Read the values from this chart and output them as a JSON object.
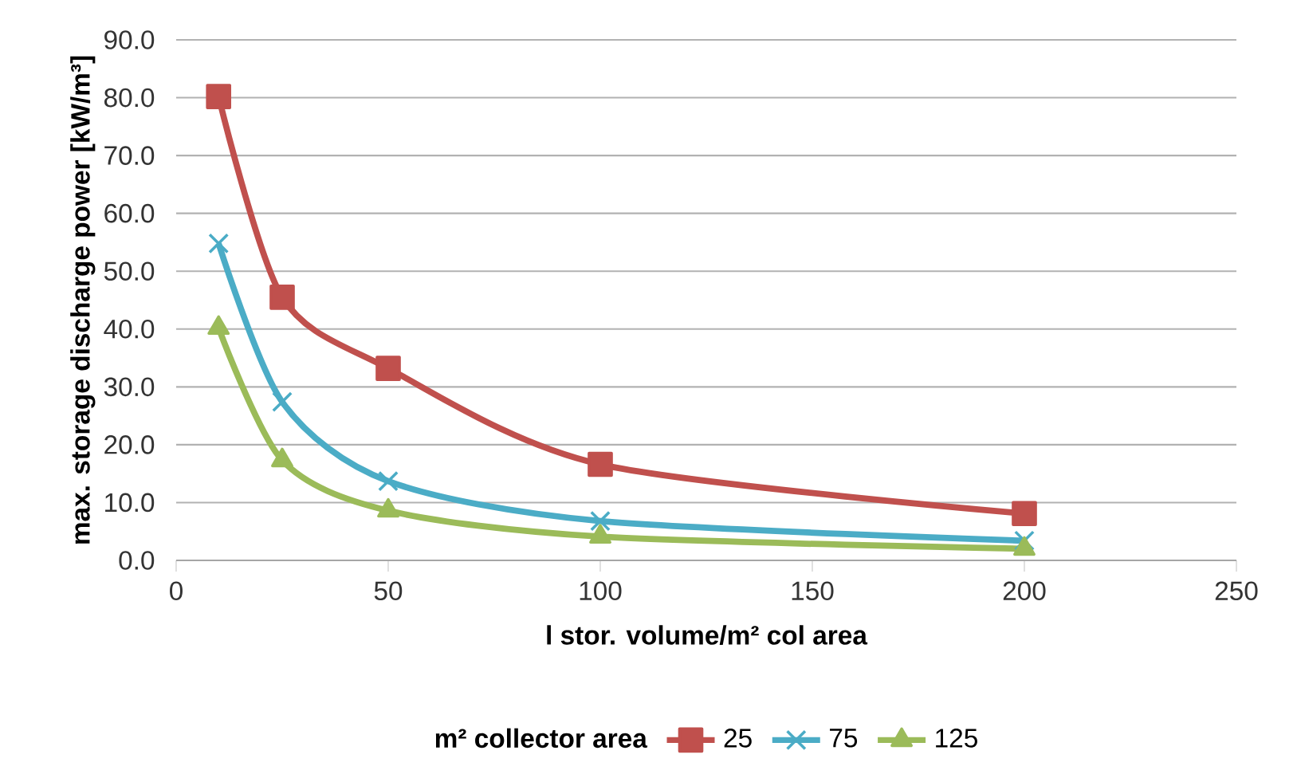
{
  "chart_data": {
    "type": "line",
    "xlabel": "l stor. volume/m² col area",
    "ylabel": "max. storage discharge power [kW/m³]",
    "legend_title": "m² collector area",
    "x": [
      10,
      25,
      50,
      100,
      200
    ],
    "series": [
      {
        "name": "25",
        "color": "#c0504d",
        "marker": "square",
        "values": [
          80.2,
          45.5,
          33.2,
          16.6,
          8.1
        ]
      },
      {
        "name": "75",
        "color": "#4bacc6",
        "marker": "cross",
        "values": [
          54.8,
          27.4,
          13.7,
          6.8,
          3.4
        ]
      },
      {
        "name": "125",
        "color": "#9bbb59",
        "marker": "triangle",
        "values": [
          40.2,
          17.3,
          8.6,
          4.1,
          2.0
        ]
      }
    ],
    "xlim": [
      0,
      250
    ],
    "xticks": [
      0,
      50,
      100,
      150,
      200,
      250
    ],
    "ylim": [
      0,
      90
    ],
    "yticks": [
      {
        "value": 0,
        "label": "0.0"
      },
      {
        "value": 10,
        "label": "10.0"
      },
      {
        "value": 20,
        "label": "20.0"
      },
      {
        "value": 30,
        "label": "30.0"
      },
      {
        "value": 40,
        "label": "40.0"
      },
      {
        "value": 50,
        "label": "50.0"
      },
      {
        "value": 60,
        "label": "60.0"
      },
      {
        "value": 70,
        "label": "70.0"
      },
      {
        "value": 80,
        "label": "80.0"
      },
      {
        "value": 90,
        "label": "90.0"
      }
    ],
    "grid": "y",
    "legend": "bottom",
    "line_style": "solid"
  }
}
